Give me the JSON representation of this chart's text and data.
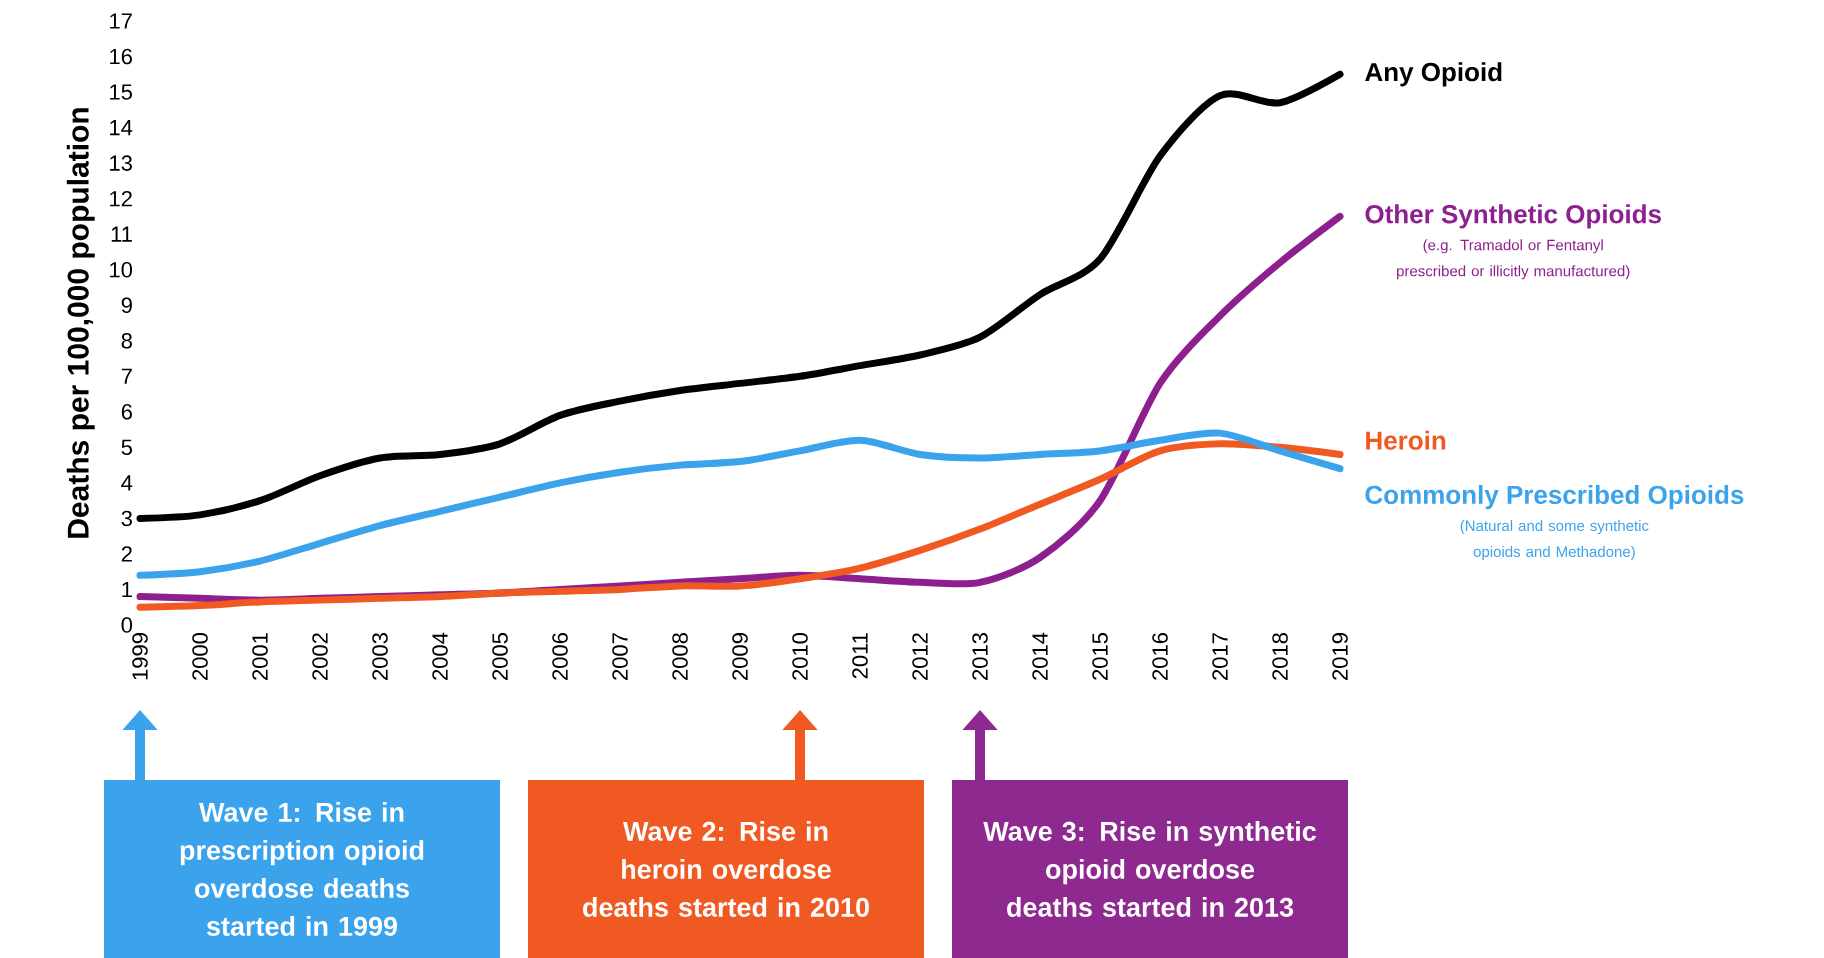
{
  "chart_data": {
    "type": "line",
    "ylabel": "Deaths per 100,000 population",
    "x": [
      1999,
      2000,
      2001,
      2002,
      2003,
      2004,
      2005,
      2006,
      2007,
      2008,
      2009,
      2010,
      2011,
      2012,
      2013,
      2014,
      2015,
      2016,
      2017,
      2018,
      2019
    ],
    "xlim": [
      1999,
      2019
    ],
    "xticks": [
      1999,
      2000,
      2001,
      2002,
      2003,
      2004,
      2005,
      2006,
      2007,
      2008,
      2009,
      2010,
      2011,
      2012,
      2013,
      2014,
      2015,
      2016,
      2017,
      2018,
      2019
    ],
    "ylim": [
      0,
      17
    ],
    "yticks": [
      0,
      1,
      2,
      3,
      4,
      5,
      6,
      7,
      8,
      9,
      10,
      11,
      12,
      13,
      14,
      15,
      16,
      17
    ],
    "series": [
      {
        "name": "Any Opioid",
        "color": "#000000",
        "values": [
          3.0,
          3.1,
          3.5,
          4.2,
          4.7,
          4.8,
          5.1,
          5.9,
          6.3,
          6.6,
          6.8,
          7.0,
          7.3,
          7.6,
          8.1,
          9.3,
          10.3,
          13.2,
          14.9,
          14.7,
          15.5
        ]
      },
      {
        "name": "Other Synthetic Opioids",
        "color": "#8e1f8e",
        "values": [
          0.8,
          0.75,
          0.7,
          0.75,
          0.8,
          0.85,
          0.9,
          1.0,
          1.1,
          1.2,
          1.3,
          1.4,
          1.3,
          1.2,
          1.2,
          1.9,
          3.5,
          6.8,
          8.7,
          10.2,
          11.5
        ]
      },
      {
        "name": "Heroin",
        "color": "#f05a22",
        "values": [
          0.5,
          0.55,
          0.65,
          0.7,
          0.75,
          0.8,
          0.9,
          0.95,
          1.0,
          1.1,
          1.1,
          1.3,
          1.6,
          2.1,
          2.7,
          3.4,
          4.1,
          4.9,
          5.1,
          5.0,
          4.8
        ]
      },
      {
        "name": "Commonly Prescribed Opioids",
        "color": "#3aa3ec",
        "values": [
          1.4,
          1.5,
          1.8,
          2.3,
          2.8,
          3.2,
          3.6,
          4.0,
          4.3,
          4.5,
          4.6,
          4.9,
          5.2,
          4.8,
          4.7,
          4.8,
          4.9,
          5.2,
          5.4,
          4.9,
          4.4
        ]
      }
    ],
    "annotations": [
      "(e.g. Tramadol or Fentanyl prescribed or illicitly manufactured)",
      "(Natural and some synthetic opioids and Methadone)",
      "Wave 1: Rise in prescription opioid overdose deaths started in 1999",
      "Wave 2: Rise in heroin overdose deaths started in 2010",
      "Wave 3: Rise in synthetic opioid overdose deaths started in 2013"
    ]
  }
}
